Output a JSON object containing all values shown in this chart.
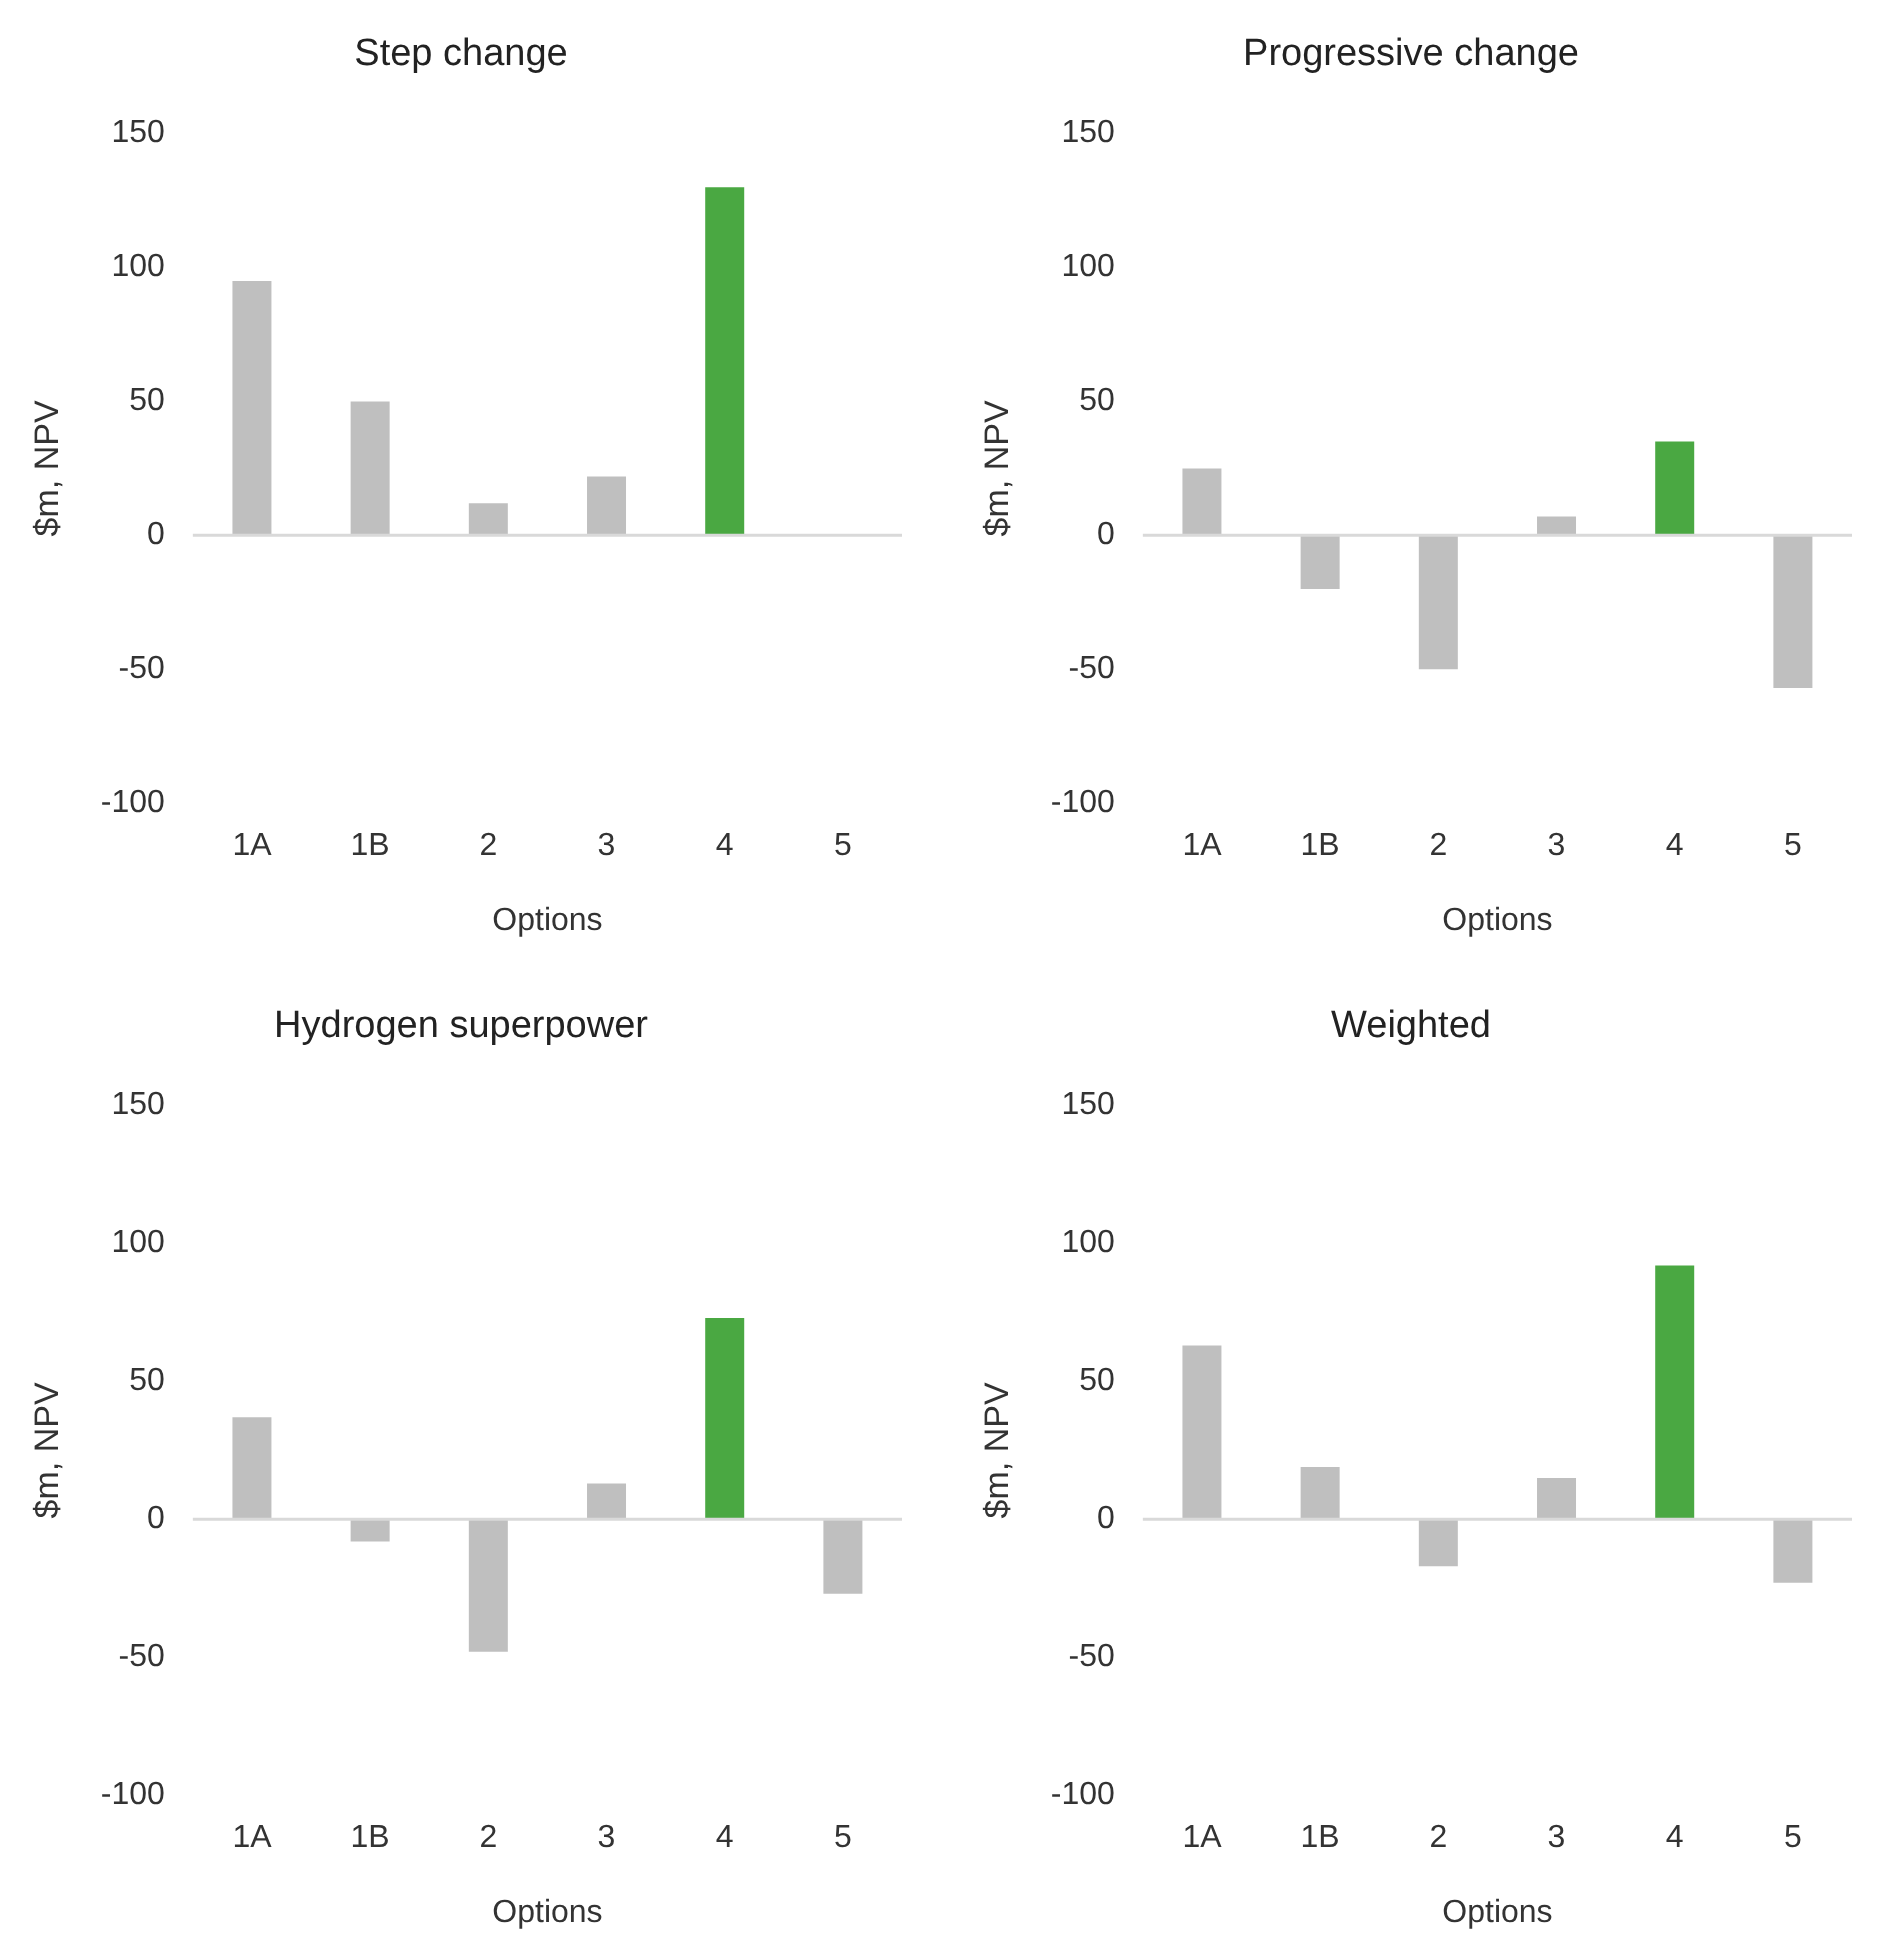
{
  "chart_data": [
    {
      "type": "bar",
      "title": "Step change",
      "xlabel": "Options",
      "ylabel": "$m, NPV",
      "categories": [
        "1A",
        "1B",
        "2",
        "3",
        "4",
        "5"
      ],
      "values": [
        95,
        50,
        12,
        22,
        130,
        0
      ],
      "colors": [
        "#bfbfbf",
        "#bfbfbf",
        "#bfbfbf",
        "#bfbfbf",
        "#4aa842",
        "#bfbfbf"
      ],
      "ylim": [
        -100,
        150
      ],
      "yticks": [
        -100,
        -50,
        0,
        50,
        100,
        150
      ]
    },
    {
      "type": "bar",
      "title": "Progressive change",
      "xlabel": "Options",
      "ylabel": "$m, NPV",
      "categories": [
        "1A",
        "1B",
        "2",
        "3",
        "4",
        "5"
      ],
      "values": [
        25,
        -20,
        -50,
        7,
        35,
        -57
      ],
      "colors": [
        "#bfbfbf",
        "#bfbfbf",
        "#bfbfbf",
        "#bfbfbf",
        "#4aa842",
        "#bfbfbf"
      ],
      "ylim": [
        -100,
        150
      ],
      "yticks": [
        -100,
        -50,
        0,
        50,
        100,
        150
      ]
    },
    {
      "type": "bar",
      "title": "Hydrogen superpower",
      "xlabel": "Options",
      "ylabel": "$m, NPV",
      "categories": [
        "1A",
        "1B",
        "2",
        "3",
        "4",
        "5"
      ],
      "values": [
        37,
        -8,
        -48,
        13,
        73,
        -27
      ],
      "colors": [
        "#bfbfbf",
        "#bfbfbf",
        "#bfbfbf",
        "#bfbfbf",
        "#4aa842",
        "#bfbfbf"
      ],
      "ylim": [
        -100,
        150
      ],
      "yticks": [
        -100,
        -50,
        0,
        50,
        100,
        150
      ]
    },
    {
      "type": "bar",
      "title": "Weighted",
      "xlabel": "Options",
      "ylabel": "$m, NPV",
      "categories": [
        "1A",
        "1B",
        "2",
        "3",
        "4",
        "5"
      ],
      "values": [
        63,
        19,
        -17,
        15,
        92,
        -23
      ],
      "colors": [
        "#bfbfbf",
        "#bfbfbf",
        "#bfbfbf",
        "#bfbfbf",
        "#4aa842",
        "#bfbfbf"
      ],
      "ylim": [
        -100,
        150
      ],
      "yticks": [
        -100,
        -50,
        0,
        50,
        100,
        150
      ]
    }
  ]
}
